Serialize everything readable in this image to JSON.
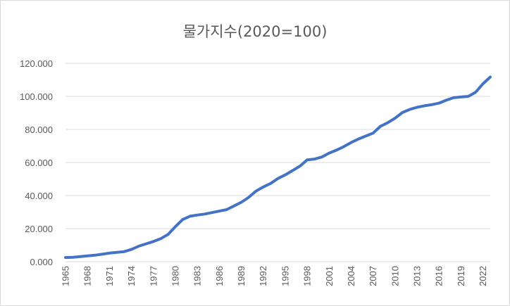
{
  "chart_data": {
    "type": "line",
    "title": "물가지수(2020=100)",
    "xlabel": "",
    "ylabel": "",
    "ylim": [
      0,
      120
    ],
    "yticks": [
      "0.000",
      "20.000",
      "40.000",
      "60.000",
      "80.000",
      "100.000",
      "120.000"
    ],
    "ytick_values": [
      0,
      20,
      40,
      60,
      80,
      100,
      120
    ],
    "xtick_labels": [
      "1965",
      "1968",
      "1971",
      "1974",
      "1977",
      "1980",
      "1983",
      "1986",
      "1989",
      "1992",
      "1995",
      "1998",
      "2001",
      "2004",
      "2007",
      "2010",
      "2013",
      "2016",
      "2019",
      "2022"
    ],
    "grid": true,
    "legend": "none",
    "line_color": "#4472C4",
    "series": [
      {
        "x": [
          1965,
          1966,
          1967,
          1968,
          1969,
          1970,
          1971,
          1972,
          1973,
          1974,
          1975,
          1976,
          1977,
          1978,
          1979,
          1980,
          1981,
          1982,
          1983,
          1984,
          1985,
          1986,
          1987,
          1988,
          1989,
          1990,
          1991,
          1992,
          1993,
          1994,
          1995,
          1996,
          1997,
          1998,
          1999,
          2000,
          2001,
          2002,
          2003,
          2004,
          2005,
          2006,
          2007,
          2008,
          2009,
          2010,
          2011,
          2012,
          2013,
          2014,
          2015,
          2016,
          2017,
          2018,
          2019,
          2020,
          2021,
          2022,
          2023
        ],
        "values": [
          2.5,
          2.7,
          3.1,
          3.5,
          3.9,
          4.5,
          5.2,
          5.6,
          6.1,
          7.4,
          9.4,
          10.8,
          12.2,
          13.9,
          16.5,
          21.2,
          25.5,
          27.5,
          28.2,
          28.8,
          29.7,
          30.6,
          31.5,
          33.7,
          35.9,
          38.9,
          42.7,
          45.2,
          47.3,
          50.3,
          52.5,
          55.1,
          57.8,
          61.6,
          62.1,
          63.3,
          65.7,
          67.5,
          69.6,
          72.1,
          74.2,
          76.0,
          77.8,
          81.9,
          84.1,
          86.8,
          90.2,
          92.1,
          93.4,
          94.3,
          95.0,
          95.9,
          97.7,
          99.2,
          99.6,
          100.0,
          102.5,
          107.6,
          111.7
        ]
      }
    ]
  }
}
